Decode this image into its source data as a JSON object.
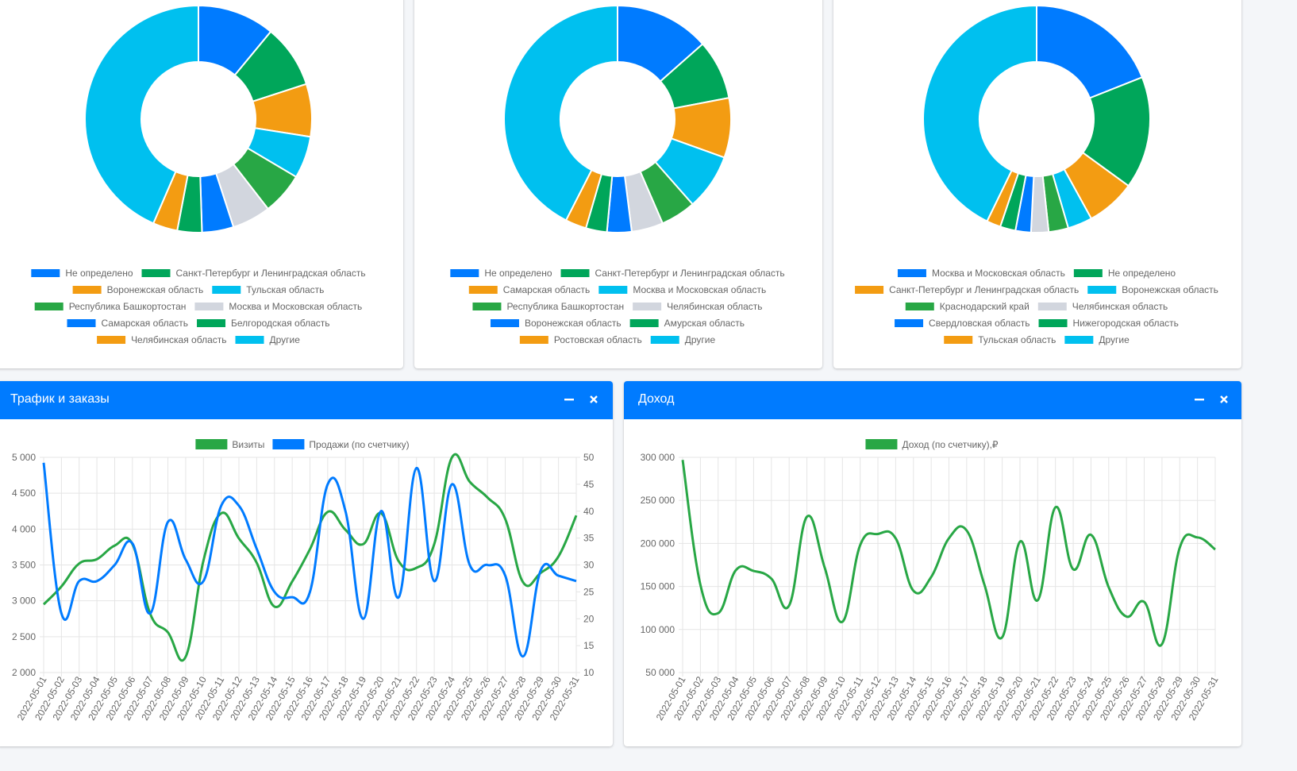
{
  "colors": {
    "blue": "#007bff",
    "green": "#00a65a",
    "orange": "#f39c12",
    "cyan": "#00c0ef",
    "bgreen": "#28a745",
    "gray": "#d2d6de"
  },
  "donuts": [
    {
      "slices": [
        {
          "label": "Не определено",
          "value": 11,
          "color": "#007bff"
        },
        {
          "label": "Санкт-Петербург и Ленинградская область",
          "value": 9,
          "color": "#00a65a"
        },
        {
          "label": "Воронежская область",
          "value": 7.5,
          "color": "#f39c12"
        },
        {
          "label": "Тульская область",
          "value": 6,
          "color": "#00c0ef"
        },
        {
          "label": "Республика Башкортостан",
          "value": 6,
          "color": "#28a745"
        },
        {
          "label": "Москва и Московская область",
          "value": 5.5,
          "color": "#d2d6de"
        },
        {
          "label": "Самарская область",
          "value": 4.5,
          "color": "#007bff"
        },
        {
          "label": "Белгородская область",
          "value": 3.5,
          "color": "#00a65a"
        },
        {
          "label": "Челябинская область",
          "value": 3.5,
          "color": "#f39c12"
        },
        {
          "label": "Другие",
          "value": 43.5,
          "color": "#00c0ef"
        }
      ]
    },
    {
      "slices": [
        {
          "label": "Не определено",
          "value": 13.5,
          "color": "#007bff"
        },
        {
          "label": "Санкт-Петербург и Ленинградская область",
          "value": 8.5,
          "color": "#00a65a"
        },
        {
          "label": "Самарская область",
          "value": 8.5,
          "color": "#f39c12"
        },
        {
          "label": "Москва и Московская область",
          "value": 8,
          "color": "#00c0ef"
        },
        {
          "label": "Республика Башкортостан",
          "value": 5,
          "color": "#28a745"
        },
        {
          "label": "Челябинская область",
          "value": 4.5,
          "color": "#d2d6de"
        },
        {
          "label": "Воронежская область",
          "value": 3.5,
          "color": "#007bff"
        },
        {
          "label": "Амурская область",
          "value": 3,
          "color": "#00a65a"
        },
        {
          "label": "Ростовская область",
          "value": 3,
          "color": "#f39c12"
        },
        {
          "label": "Другие",
          "value": 42.5,
          "color": "#00c0ef"
        }
      ]
    },
    {
      "slices": [
        {
          "label": "Москва и Московская область",
          "value": 19,
          "color": "#007bff"
        },
        {
          "label": "Не определено",
          "value": 16,
          "color": "#00a65a"
        },
        {
          "label": "Санкт-Петербург и Ленинградская область",
          "value": 7,
          "color": "#f39c12"
        },
        {
          "label": "Воронежская область",
          "value": 3.5,
          "color": "#00c0ef"
        },
        {
          "label": "Краснодарский край",
          "value": 2.8,
          "color": "#28a745"
        },
        {
          "label": "Челябинская область",
          "value": 2.5,
          "color": "#d2d6de"
        },
        {
          "label": "Свердловская область",
          "value": 2.2,
          "color": "#007bff"
        },
        {
          "label": "Нижегородская область",
          "value": 2.2,
          "color": "#00a65a"
        },
        {
          "label": "Тульская область",
          "value": 2,
          "color": "#f39c12"
        },
        {
          "label": "Другие",
          "value": 42.8,
          "color": "#00c0ef"
        }
      ]
    }
  ],
  "traffic": {
    "title": "Трафик и заказы",
    "minimize_icon": "minus-icon",
    "close_icon": "times-icon"
  },
  "income": {
    "title": "Доход",
    "minimize_icon": "minus-icon",
    "close_icon": "times-icon"
  },
  "chart_data": [
    {
      "type": "pie",
      "variant": "doughnut",
      "labels": [
        "Не определено",
        "Санкт-Петербург и Ленинградская область",
        "Воронежская область",
        "Тульская область",
        "Республика Башкортостан",
        "Москва и Московская область",
        "Самарская область",
        "Белгородская область",
        "Челябинская область",
        "Другие"
      ],
      "values": [
        11,
        9,
        7.5,
        6,
        6,
        5.5,
        4.5,
        3.5,
        3.5,
        43.5
      ]
    },
    {
      "type": "pie",
      "variant": "doughnut",
      "labels": [
        "Не определено",
        "Санкт-Петербург и Ленинградская область",
        "Самарская область",
        "Москва и Московская область",
        "Республика Башкортостан",
        "Челябинская область",
        "Воронежская область",
        "Амурская область",
        "Ростовская область",
        "Другие"
      ],
      "values": [
        13.5,
        8.5,
        8.5,
        8,
        5,
        4.5,
        3.5,
        3,
        3,
        42.5
      ]
    },
    {
      "type": "pie",
      "variant": "doughnut",
      "labels": [
        "Москва и Московская область",
        "Не определено",
        "Санкт-Петербург и Ленинградская область",
        "Воронежская область",
        "Краснодарский край",
        "Челябинская область",
        "Свердловская область",
        "Нижегородская область",
        "Тульская область",
        "Другие"
      ],
      "values": [
        19,
        16,
        7,
        3.5,
        2.8,
        2.5,
        2.2,
        2.2,
        2,
        42.8
      ]
    },
    {
      "type": "line",
      "x": [
        "2022-05-01",
        "2022-05-02",
        "2022-05-03",
        "2022-05-04",
        "2022-05-05",
        "2022-05-06",
        "2022-05-07",
        "2022-05-08",
        "2022-05-09",
        "2022-05-10",
        "2022-05-11",
        "2022-05-12",
        "2022-05-13",
        "2022-05-14",
        "2022-05-15",
        "2022-05-16",
        "2022-05-17",
        "2022-05-18",
        "2022-05-19",
        "2022-05-20",
        "2022-05-21",
        "2022-05-22",
        "2022-05-23",
        "2022-05-24",
        "2022-05-25",
        "2022-05-26",
        "2022-05-27",
        "2022-05-28",
        "2022-05-29",
        "2022-05-30",
        "2022-05-31"
      ],
      "series": [
        {
          "name": "Визиты",
          "axis": "left",
          "color": "#28a745",
          "values": [
            2950,
            3200,
            3520,
            3580,
            3770,
            3790,
            2820,
            2560,
            2220,
            3560,
            4220,
            3870,
            3530,
            2920,
            3270,
            3720,
            4240,
            3990,
            3790,
            4220,
            3550,
            3460,
            3790,
            5000,
            4660,
            4440,
            4140,
            3260,
            3390,
            3620,
            4190
          ]
        },
        {
          "name": "Продажи (по счетчику)",
          "axis": "right",
          "color": "#007bff",
          "values": [
            49,
            21,
            27,
            27,
            30,
            34,
            21,
            38,
            31,
            27,
            41,
            41,
            33,
            25,
            24,
            25,
            45,
            40,
            20,
            40,
            24,
            48,
            27,
            45,
            30,
            30,
            28,
            13,
            29,
            28,
            27
          ]
        }
      ],
      "yleft_ticks": [
        "2 000",
        "2 500",
        "3 000",
        "3 500",
        "4 000",
        "4 500",
        "5 000"
      ],
      "yleft_range": [
        2000,
        5000
      ],
      "yright_ticks": [
        "10",
        "15",
        "20",
        "25",
        "30",
        "35",
        "40",
        "45",
        "50"
      ],
      "yright_range": [
        10,
        50
      ],
      "legend_position": "top",
      "grid": true
    },
    {
      "type": "line",
      "x": [
        "2022-05-01",
        "2022-05-02",
        "2022-05-03",
        "2022-05-04",
        "2022-05-05",
        "2022-05-06",
        "2022-05-07",
        "2022-05-08",
        "2022-05-09",
        "2022-05-10",
        "2022-05-11",
        "2022-05-12",
        "2022-05-13",
        "2022-05-14",
        "2022-05-15",
        "2022-05-16",
        "2022-05-17",
        "2022-05-18",
        "2022-05-19",
        "2022-05-20",
        "2022-05-21",
        "2022-05-22",
        "2022-05-23",
        "2022-05-24",
        "2022-05-25",
        "2022-05-26",
        "2022-05-27",
        "2022-05-28",
        "2022-05-29",
        "2022-05-30",
        "2022-05-31"
      ],
      "series": [
        {
          "name": "Доход (по счетчику),₽",
          "color": "#28a745",
          "values": [
            297000,
            152000,
            119000,
            169000,
            168000,
            159000,
            128000,
            231000,
            172000,
            109000,
            198000,
            211000,
            206000,
            145000,
            161000,
            206000,
            215000,
            152000,
            91000,
            202000,
            134000,
            242000,
            170000,
            210000,
            149000,
            115000,
            132000,
            83000,
            195000,
            207000,
            193000
          ]
        }
      ],
      "y_ticks": [
        "50 000",
        "100 000",
        "150 000",
        "200 000",
        "250 000",
        "300 000"
      ],
      "y_range": [
        50000,
        300000
      ],
      "legend_position": "top",
      "grid": true
    }
  ]
}
